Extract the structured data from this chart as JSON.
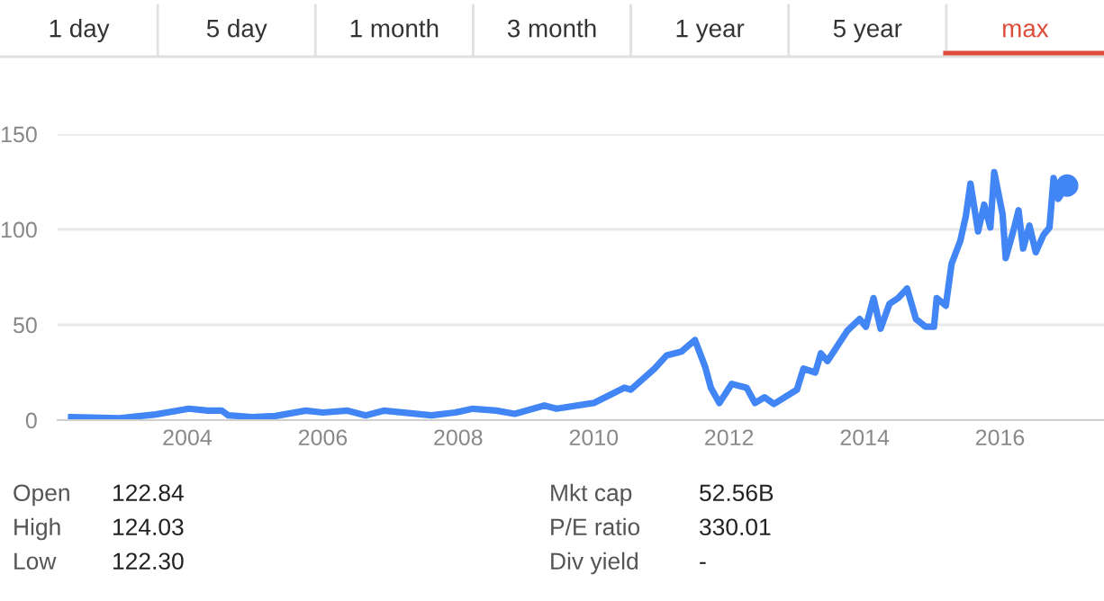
{
  "chart_data": {
    "type": "line",
    "color": "#4285f4",
    "grid": "y",
    "marker": "none",
    "line_style": "solid",
    "x": [
      "2002-04-15",
      "2003-01-01",
      "2003-07-15",
      "2004-01-10",
      "2004-04-20",
      "2004-07-05",
      "2004-08-10",
      "2004-12-15",
      "2005-04-20",
      "2005-10-01",
      "2006-01-01",
      "2006-05-15",
      "2006-08-20",
      "2006-11-25",
      "2007-08-10",
      "2007-12-15",
      "2008-03-20",
      "2008-07-25",
      "2008-11-01",
      "2009-04-10",
      "2009-06-15",
      "2010-01-01",
      "2010-06-15",
      "2010-07-20",
      "2010-11-25",
      "2011-01-30",
      "2011-04-20",
      "2011-07-01",
      "2011-08-25",
      "2011-09-25",
      "2011-11-10",
      "2012-01-15",
      "2012-04-05",
      "2012-05-20",
      "2012-07-10",
      "2012-08-30",
      "2013-01-01",
      "2013-02-05",
      "2013-04-10",
      "2013-05-10",
      "2013-06-15",
      "2013-08-01",
      "2013-10-01",
      "2013-12-05",
      "2014-01-08",
      "2014-02-18",
      "2014-03-28",
      "2014-05-15",
      "2014-07-01",
      "2014-08-18",
      "2014-10-05",
      "2014-11-25",
      "2015-01-10",
      "2015-01-25",
      "2015-03-15",
      "2015-04-15",
      "2015-06-01",
      "2015-07-01",
      "2015-07-26",
      "2015-09-05",
      "2015-10-08",
      "2015-11-10",
      "2015-12-01",
      "2016-01-15",
      "2016-02-01",
      "2016-03-18",
      "2016-04-10",
      "2016-05-05",
      "2016-06-08",
      "2016-07-12",
      "2016-08-22",
      "2016-09-24",
      "2016-10-16",
      "2016-11-10",
      "2016-12-28"
    ],
    "values": [
      1.6,
      1,
      3,
      6,
      5,
      5,
      2.5,
      1.6,
      2.2,
      5,
      4,
      5,
      2.5,
      5,
      2.5,
      4,
      6,
      5,
      3.3,
      7.7,
      6,
      9,
      17,
      16,
      27,
      34,
      36,
      42,
      28,
      17,
      9,
      19,
      17,
      9,
      12,
      8.5,
      16,
      27,
      25,
      35,
      31,
      38,
      47,
      53,
      49,
      64,
      48,
      61,
      64,
      69,
      53,
      49,
      49,
      64,
      60,
      82,
      94,
      107,
      124,
      99,
      113,
      101,
      130,
      108,
      85,
      101,
      110,
      90,
      102,
      88,
      97,
      101,
      127,
      116,
      123
    ],
    "xlim": [
      "2002-02-01",
      "2017-07-15"
    ],
    "ylim": [
      0,
      150
    ],
    "yticks": [
      0,
      50,
      100,
      150
    ],
    "xticks": [
      {
        "value": "2004-01-01",
        "label": "2004"
      },
      {
        "value": "2006-01-01",
        "label": "2006"
      },
      {
        "value": "2008-01-01",
        "label": "2008"
      },
      {
        "value": "2010-01-01",
        "label": "2010"
      },
      {
        "value": "2012-01-01",
        "label": "2012"
      },
      {
        "value": "2014-01-01",
        "label": "2014"
      },
      {
        "value": "2016-01-01",
        "label": "2016"
      }
    ],
    "annotations": [
      "1 day",
      "5 day",
      "1 month",
      "3 month",
      "1 year",
      "5 year",
      "max",
      "Open",
      "122.84",
      "High",
      "124.03",
      "Low",
      "122.30",
      "Mkt cap",
      "52.56B",
      "P/E ratio",
      "330.01",
      "Div yield",
      "-"
    ]
  }
}
